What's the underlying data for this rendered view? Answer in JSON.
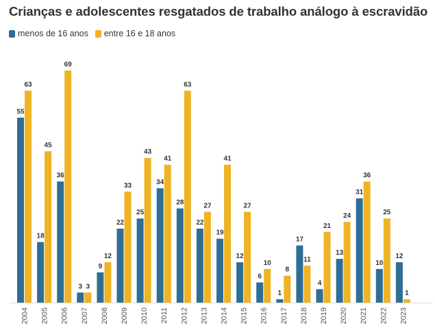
{
  "chart_data": {
    "type": "bar",
    "title": "Crianças e adolescentes resgatados de trabalho análogo à escravidão",
    "categories": [
      "2004",
      "2005",
      "2006",
      "2007",
      "2008",
      "2009",
      "2010",
      "2011",
      "2012",
      "2013",
      "2014",
      "2015",
      "2016",
      "2017",
      "2018",
      "2019",
      "2020",
      "2021",
      "2022",
      "2023"
    ],
    "series": [
      {
        "name": "menos de 16 anos",
        "color": "#2e6e94",
        "values": [
          55,
          18,
          36,
          3,
          9,
          22,
          25,
          34,
          28,
          22,
          19,
          12,
          6,
          1,
          17,
          4,
          13,
          31,
          10,
          12
        ]
      },
      {
        "name": "entre 16 e 18 anos",
        "color": "#f0b323",
        "values": [
          63,
          45,
          69,
          3,
          12,
          33,
          43,
          41,
          63,
          27,
          41,
          27,
          10,
          8,
          11,
          21,
          24,
          36,
          25,
          1
        ]
      }
    ],
    "ylim": [
      0,
      69
    ],
    "legend_position": "top-left",
    "grid": false
  }
}
